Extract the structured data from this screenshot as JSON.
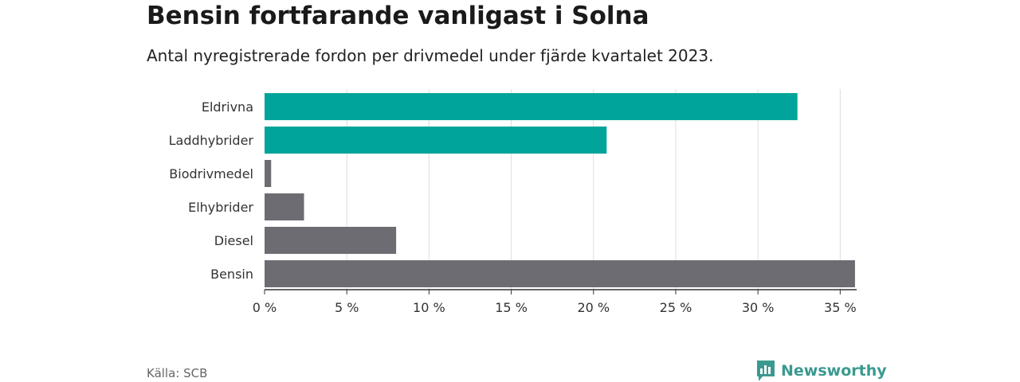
{
  "header": {
    "title": "Bensin fortfarande vanligast i Solna",
    "subtitle": "Antal nyregistrerade fordon per drivmedel under fjärde kvartalet 2023."
  },
  "footer": {
    "source": "Källa: SCB",
    "brand": "Newsworthy"
  },
  "colors": {
    "highlight": "#00a49a",
    "other": "#6e6c73",
    "grid": "#dddddd",
    "axis": "#333333",
    "brand": "#3a9a8f"
  },
  "chart_data": {
    "type": "bar",
    "orientation": "horizontal",
    "title": "Bensin fortfarande vanligast i Solna",
    "subtitle": "Antal nyregistrerade fordon per drivmedel under fjärde kvartalet 2023.",
    "categories": [
      "Eldrivna",
      "Laddhybrider",
      "Biodrivmedel",
      "Elhybrider",
      "Diesel",
      "Bensin"
    ],
    "values": [
      32.4,
      20.8,
      0.4,
      2.4,
      8.0,
      35.9
    ],
    "highlighted": [
      true,
      true,
      false,
      false,
      false,
      false
    ],
    "xlim": [
      0,
      36
    ],
    "xticks": [
      0,
      5,
      10,
      15,
      20,
      25,
      30,
      35
    ],
    "xtick_labels": [
      "0 %",
      "5 %",
      "10 %",
      "15 %",
      "20 %",
      "25 %",
      "30 %",
      "35 %"
    ],
    "xlabel": "",
    "ylabel": "",
    "grid": true
  }
}
